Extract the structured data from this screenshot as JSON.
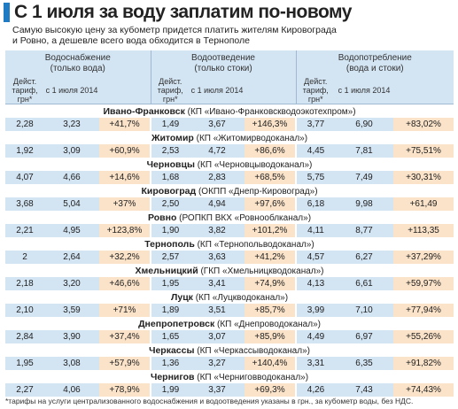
{
  "header": {
    "title": "С 1 июля за воду заплатим по-новому",
    "subtitle": "Самую высокую цену за кубометр придется платить жителям Кировограда и Ровно, а дешевле всего вода обходится в Тернополе"
  },
  "table": {
    "groups": [
      {
        "title": "Водоснабжение",
        "subtitle": "(только вода)"
      },
      {
        "title": "Водоотведение",
        "subtitle": "(только стоки)"
      },
      {
        "title": "Водопотребление",
        "subtitle": "(вода и стоки)"
      }
    ],
    "subheaders": [
      "Дейст. тариф, грн*",
      "с 1 июля 2014"
    ],
    "rows": [
      {
        "city": "Ивано-Франковск",
        "company": "(КП «Ивано-Франковскводоэкотехпром»)",
        "values": [
          "2,28",
          "3,23",
          "+41,7%",
          "1,49",
          "3,67",
          "+146,3%",
          "3,77",
          "6,90",
          "+83,02%"
        ]
      },
      {
        "city": "Житомир",
        "company": "(КП «Житомирводоканал»)",
        "values": [
          "1,92",
          "3,09",
          "+60,9%",
          "2,53",
          "4,72",
          "+86,6%",
          "4,45",
          "7,81",
          "+75,51%"
        ]
      },
      {
        "city": "Черновцы",
        "company": "(КП «Черновцыводоканал»)",
        "values": [
          "4,07",
          "4,66",
          "+14,6%",
          "1,68",
          "2,83",
          "+68,5%",
          "5,75",
          "7,49",
          "+30,31%"
        ]
      },
      {
        "city": "Кировоград",
        "company": "(ОКПП «Днепр-Кировоград»)",
        "values": [
          "3,68",
          "5,04",
          "+37%",
          "2,50",
          "4,94",
          "+97,6%",
          "6,18",
          "9,98",
          "+61,49"
        ]
      },
      {
        "city": "Ровно",
        "company": "(РОПКП ВКХ «Ровнооблканал»)",
        "values": [
          "2,21",
          "4,95",
          "+123,8%",
          "1,90",
          "3,82",
          "+101,2%",
          "4,11",
          "8,77",
          "+113,35"
        ]
      },
      {
        "city": "Тернополь",
        "company": "(КП «Тернопольводоканал»)",
        "values": [
          "2",
          "2,64",
          "+32,2%",
          "2,57",
          "3,63",
          "+41,2%",
          "4,57",
          "6,27",
          "+37,29%"
        ]
      },
      {
        "city": "Хмельницкий",
        "company": "(ГКП «Хмельницкводоканал»)",
        "values": [
          "2,18",
          "3,20",
          "+46,6%",
          "1,95",
          "3,41",
          "+74,9%",
          "4,13",
          "6,61",
          "+59,97%"
        ]
      },
      {
        "city": "Луцк",
        "company": "(КП «Луцкводоканал»)",
        "values": [
          "2,10",
          "3,59",
          "+71%",
          "1,89",
          "3,51",
          "+85,7%",
          "3,99",
          "7,10",
          "+77,94%"
        ]
      },
      {
        "city": "Днепропетровск",
        "company": "(КП «Днепроводоканал»)",
        "values": [
          "2,84",
          "3,90",
          "+37,4%",
          "1,65",
          "3,07",
          "+85,9%",
          "4,49",
          "6,97",
          "+55,26%"
        ]
      },
      {
        "city": "Черкассы",
        "company": "(КП «Черкассыводоканал»)",
        "values": [
          "1,95",
          "3,08",
          "+57,9%",
          "1,36",
          "3,27",
          "+140,4%",
          "3,31",
          "6,35",
          "+91,82%"
        ]
      },
      {
        "city": "Чернигов",
        "company": "(КП «Черниговводоканал»)",
        "values": [
          "2,27",
          "4,06",
          "+78,9%",
          "1,99",
          "3,37",
          "+69,3%",
          "4,26",
          "7,43",
          "+74,43%"
        ]
      }
    ]
  },
  "footnote": "*тарифы на услуги централизованного водоснабжения и водоотведения указаны в грн., за кубометр воды, без НДС."
}
